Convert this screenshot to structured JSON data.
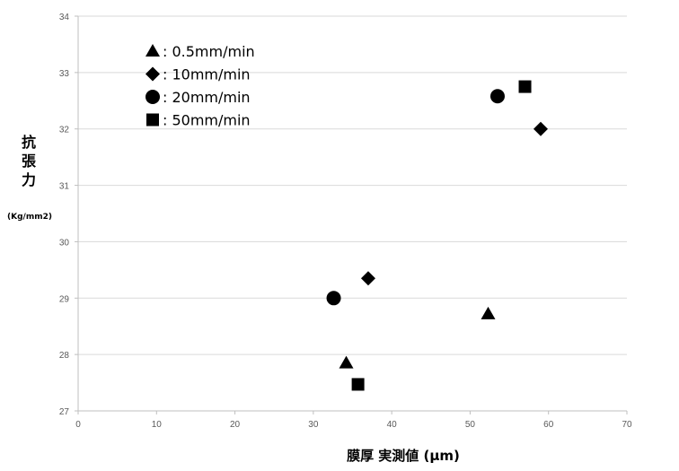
{
  "chart_data": {
    "type": "scatter",
    "xlabel": "膜厚 実測値 (μm)",
    "ylabel_lines": [
      "抗",
      "張",
      "力"
    ],
    "yunit": "(Kg/mm2)",
    "xlim": [
      0,
      70
    ],
    "ylim": [
      27,
      34
    ],
    "xticks": [
      0,
      10,
      20,
      30,
      40,
      50,
      60,
      70
    ],
    "yticks": [
      27,
      28,
      29,
      30,
      31,
      32,
      33,
      34
    ],
    "grid": "horizontal",
    "legend_position": "top-left",
    "series": [
      {
        "name": ": 0.5mm/min",
        "marker": "triangle",
        "points": [
          [
            34.2,
            27.85
          ],
          [
            52.3,
            28.72
          ]
        ]
      },
      {
        "name": ": 10mm/min",
        "marker": "diamond",
        "points": [
          [
            37.0,
            29.35
          ],
          [
            59.0,
            32.0
          ]
        ]
      },
      {
        "name": ": 20mm/min",
        "marker": "circle",
        "points": [
          [
            32.6,
            29.0
          ],
          [
            53.5,
            32.58
          ]
        ]
      },
      {
        "name": ": 50mm/min",
        "marker": "square",
        "points": [
          [
            35.7,
            27.47
          ],
          [
            57.0,
            32.75
          ]
        ]
      }
    ],
    "colors": {
      "marker": "#000000",
      "grid": "#d9d9d9",
      "axis": "#bfbfbf"
    }
  }
}
